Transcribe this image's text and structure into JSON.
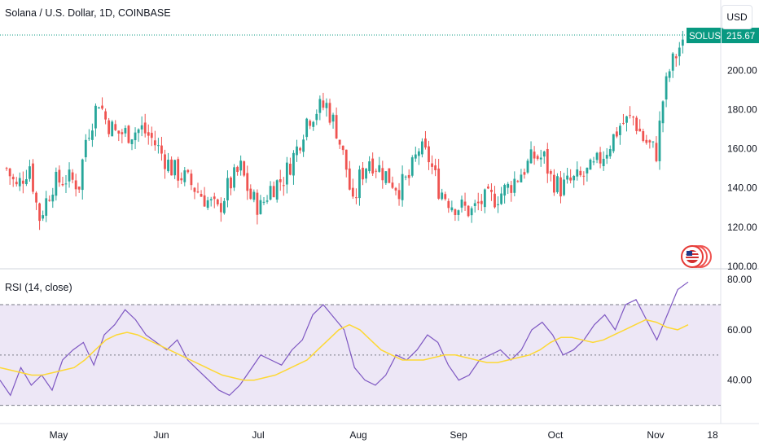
{
  "chart_title": "Solana / U.S. Dollar, 1D, COINBASE",
  "currency_button": "USD",
  "price_badge": {
    "symbol": "SOLUSD",
    "value": "215.67"
  },
  "rsi_title": "RSI (14, close)",
  "colors": {
    "up": "#26a69a",
    "down": "#ef5350",
    "rsi_line": "#7e57c2",
    "rsi_ma": "#fdd835",
    "rsi_band": "#ede7f6",
    "badge": "#089981"
  },
  "chart_data": [
    {
      "type": "candlestick",
      "title": "Solana / U.S. Dollar, 1D, COINBASE",
      "y_axis": {
        "ticks": [
          "100.00",
          "120.00",
          "140.00",
          "160.00",
          "180.00",
          "200.00"
        ],
        "range": [
          100,
          218
        ],
        "position": "right"
      },
      "x_axis": {
        "ticks": [
          "May",
          "Jun",
          "Jul",
          "Aug",
          "Sep",
          "Oct",
          "Nov",
          "18"
        ]
      },
      "last_price": 215.67,
      "price_path": [
        {
          "x": "Apr 21",
          "y": 150
        },
        {
          "x": "Apr 24",
          "y": 140
        },
        {
          "x": "Apr 28",
          "y": 152
        },
        {
          "x": "Apr 30",
          "y": 132
        },
        {
          "x": "May 1",
          "y": 125
        },
        {
          "x": "May 5",
          "y": 142
        },
        {
          "x": "May 9",
          "y": 145
        },
        {
          "x": "May 13",
          "y": 142
        },
        {
          "x": "May 15",
          "y": 165
        },
        {
          "x": "May 17",
          "y": 175
        },
        {
          "x": "May 19",
          "y": 185
        },
        {
          "x": "May 21",
          "y": 175
        },
        {
          "x": "May 24",
          "y": 168
        },
        {
          "x": "May 28",
          "y": 168
        },
        {
          "x": "Jun 1",
          "y": 170
        },
        {
          "x": "Jun 4",
          "y": 165
        },
        {
          "x": "Jun 6",
          "y": 160
        },
        {
          "x": "Jun 10",
          "y": 150
        },
        {
          "x": "Jun 14",
          "y": 145
        },
        {
          "x": "Jun 17",
          "y": 140
        },
        {
          "x": "Jun 20",
          "y": 135
        },
        {
          "x": "Jun 24",
          "y": 128
        },
        {
          "x": "Jun 27",
          "y": 140
        },
        {
          "x": "Jul 1",
          "y": 150
        },
        {
          "x": "Jul 4",
          "y": 135
        },
        {
          "x": "Jul 7",
          "y": 130
        },
        {
          "x": "Jul 10",
          "y": 140
        },
        {
          "x": "Jul 14",
          "y": 145
        },
        {
          "x": "Jul 18",
          "y": 160
        },
        {
          "x": "Jul 21",
          "y": 175
        },
        {
          "x": "Jul 24",
          "y": 180
        },
        {
          "x": "Jul 27",
          "y": 182
        },
        {
          "x": "Jul 30",
          "y": 170
        },
        {
          "x": "Aug 2",
          "y": 150
        },
        {
          "x": "Aug 4",
          "y": 130
        },
        {
          "x": "Aug 6",
          "y": 145
        },
        {
          "x": "Aug 9",
          "y": 155
        },
        {
          "x": "Aug 12",
          "y": 150
        },
        {
          "x": "Aug 15",
          "y": 145
        },
        {
          "x": "Aug 18",
          "y": 140
        },
        {
          "x": "Aug 21",
          "y": 145
        },
        {
          "x": "Aug 24",
          "y": 160
        },
        {
          "x": "Aug 27",
          "y": 155
        },
        {
          "x": "Aug 30",
          "y": 140
        },
        {
          "x": "Sep 3",
          "y": 132
        },
        {
          "x": "Sep 6",
          "y": 130
        },
        {
          "x": "Sep 9",
          "y": 128
        },
        {
          "x": "Sep 12",
          "y": 133
        },
        {
          "x": "Sep 16",
          "y": 135
        },
        {
          "x": "Sep 20",
          "y": 140
        },
        {
          "x": "Sep 24",
          "y": 148
        },
        {
          "x": "Sep 28",
          "y": 156
        },
        {
          "x": "Oct 1",
          "y": 155
        },
        {
          "x": "Oct 3",
          "y": 145
        },
        {
          "x": "Oct 6",
          "y": 140
        },
        {
          "x": "Oct 9",
          "y": 143
        },
        {
          "x": "Oct 12",
          "y": 145
        },
        {
          "x": "Oct 16",
          "y": 150
        },
        {
          "x": "Oct 20",
          "y": 160
        },
        {
          "x": "Oct 24",
          "y": 172
        },
        {
          "x": "Oct 28",
          "y": 176
        },
        {
          "x": "Oct 31",
          "y": 165
        },
        {
          "x": "Nov 4",
          "y": 158
        },
        {
          "x": "Nov 6",
          "y": 185
        },
        {
          "x": "Nov 8",
          "y": 200
        },
        {
          "x": "Nov 10",
          "y": 208
        },
        {
          "x": "Nov 12",
          "y": 215.67
        }
      ]
    },
    {
      "type": "line",
      "title": "RSI (14, close)",
      "y_axis": {
        "ticks": [
          "40.00",
          "60.00",
          "80.00"
        ],
        "range": [
          26,
          81
        ],
        "position": "right"
      },
      "bands": {
        "upper": 70,
        "middle": 50,
        "lower": 30
      },
      "series": [
        {
          "values": [
            40,
            34,
            45,
            38,
            42,
            36,
            48,
            52,
            55,
            46,
            58,
            62,
            68,
            64,
            58,
            55,
            52,
            56,
            48,
            44,
            40,
            36,
            34,
            38,
            44,
            50,
            48,
            46,
            52,
            56,
            66,
            70,
            65,
            60,
            45,
            40,
            38,
            42,
            50,
            48,
            52,
            58,
            55,
            46,
            40,
            42,
            48,
            50,
            52,
            48,
            52,
            60,
            63,
            58,
            50,
            52,
            56,
            62,
            66,
            60,
            70,
            72,
            64,
            56,
            66,
            76,
            79
          ]
        },
        {
          "values": [
            45,
            44,
            43,
            42,
            42,
            43,
            44,
            45,
            48,
            52,
            56,
            58,
            59,
            58,
            56,
            54,
            52,
            50,
            48,
            46,
            44,
            42,
            41,
            40,
            40,
            41,
            42,
            44,
            46,
            48,
            52,
            56,
            60,
            62,
            60,
            56,
            52,
            50,
            48,
            48,
            48,
            49,
            50,
            50,
            49,
            48,
            47,
            47,
            48,
            49,
            50,
            52,
            55,
            57,
            57,
            56,
            55,
            56,
            58,
            60,
            62,
            64,
            63,
            61,
            60,
            62
          ]
        }
      ]
    }
  ]
}
